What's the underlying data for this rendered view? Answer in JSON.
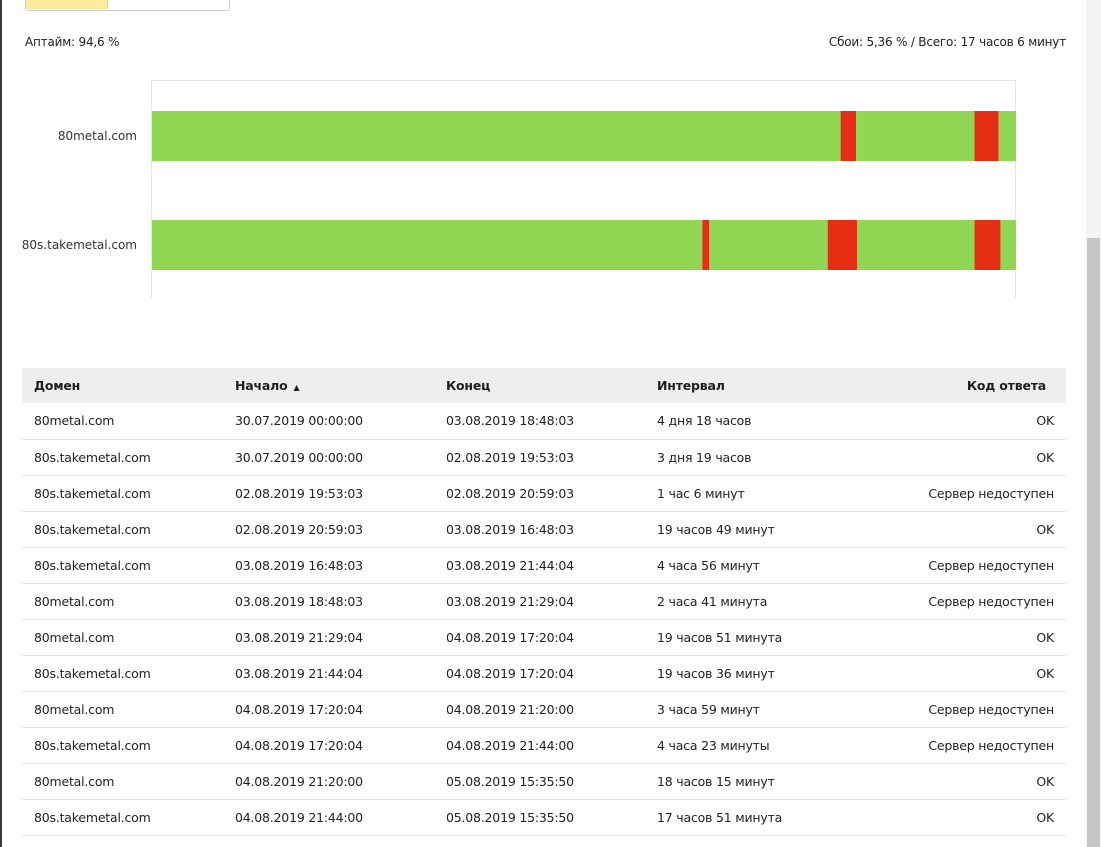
{
  "summary": {
    "uptime": "Аптайм: 94,6 %",
    "failures": "Сбои: 5,36 % / Всего: 17 часов 6 минут"
  },
  "colors": {
    "up": "#91d754",
    "down": "#e62e14",
    "ok_text": "#1a8a1a",
    "down_text": "#e32222"
  },
  "timeline": {
    "tracks": [
      {
        "label": "80metal.com",
        "segments": [
          {
            "status": "up",
            "start": 0.0,
            "end": 0.797
          },
          {
            "status": "down",
            "start": 0.797,
            "end": 0.815
          },
          {
            "status": "up",
            "start": 0.815,
            "end": 0.952
          },
          {
            "status": "down",
            "start": 0.952,
            "end": 0.98
          },
          {
            "status": "up",
            "start": 0.98,
            "end": 1.0
          }
        ]
      },
      {
        "label": "80s.takemetal.com",
        "segments": [
          {
            "status": "up",
            "start": 0.0,
            "end": 0.637
          },
          {
            "status": "down",
            "start": 0.637,
            "end": 0.645
          },
          {
            "status": "up",
            "start": 0.645,
            "end": 0.782
          },
          {
            "status": "down",
            "start": 0.782,
            "end": 0.816
          },
          {
            "status": "up",
            "start": 0.816,
            "end": 0.952
          },
          {
            "status": "down",
            "start": 0.952,
            "end": 0.982
          },
          {
            "status": "up",
            "start": 0.982,
            "end": 1.0
          }
        ]
      }
    ]
  },
  "table": {
    "headers": {
      "domain": "Домен",
      "start": "Начало",
      "sort_arrow": "▲",
      "end": "Конец",
      "interval": "Интервал",
      "code": "Код ответа"
    },
    "rows": [
      {
        "domain": "80metal.com",
        "start": "30.07.2019 00:00:00",
        "end": "03.08.2019 18:48:03",
        "interval": "4 дня 18 часов",
        "code": "OK",
        "status": "ok"
      },
      {
        "domain": "80s.takemetal.com",
        "start": "30.07.2019 00:00:00",
        "end": "02.08.2019 19:53:03",
        "interval": "3 дня 19 часов",
        "code": "OK",
        "status": "ok"
      },
      {
        "domain": "80s.takemetal.com",
        "start": "02.08.2019 19:53:03",
        "end": "02.08.2019 20:59:03",
        "interval": "1 час 6 минут",
        "code": "Сервер недоступен",
        "status": "down"
      },
      {
        "domain": "80s.takemetal.com",
        "start": "02.08.2019 20:59:03",
        "end": "03.08.2019 16:48:03",
        "interval": "19 часов 49 минут",
        "code": "OK",
        "status": "ok"
      },
      {
        "domain": "80s.takemetal.com",
        "start": "03.08.2019 16:48:03",
        "end": "03.08.2019 21:44:04",
        "interval": "4 часа 56 минут",
        "code": "Сервер недоступен",
        "status": "down"
      },
      {
        "domain": "80metal.com",
        "start": "03.08.2019 18:48:03",
        "end": "03.08.2019 21:29:04",
        "interval": "2 часа 41 минута",
        "code": "Сервер недоступен",
        "status": "down"
      },
      {
        "domain": "80metal.com",
        "start": "03.08.2019 21:29:04",
        "end": "04.08.2019 17:20:04",
        "interval": "19 часов 51 минута",
        "code": "OK",
        "status": "ok"
      },
      {
        "domain": "80s.takemetal.com",
        "start": "03.08.2019 21:44:04",
        "end": "04.08.2019 17:20:04",
        "interval": "19 часов 36 минут",
        "code": "OK",
        "status": "ok"
      },
      {
        "domain": "80metal.com",
        "start": "04.08.2019 17:20:04",
        "end": "04.08.2019 21:20:00",
        "interval": "3 часа 59 минут",
        "code": "Сервер недоступен",
        "status": "down"
      },
      {
        "domain": "80s.takemetal.com",
        "start": "04.08.2019 17:20:04",
        "end": "04.08.2019 21:44:00",
        "interval": "4 часа 23 минуты",
        "code": "Сервер недоступен",
        "status": "down"
      },
      {
        "domain": "80metal.com",
        "start": "04.08.2019 21:20:00",
        "end": "05.08.2019 15:35:50",
        "interval": "18 часов 15 минут",
        "code": "OK",
        "status": "ok"
      },
      {
        "domain": "80s.takemetal.com",
        "start": "04.08.2019 21:44:00",
        "end": "05.08.2019 15:35:50",
        "interval": "17 часов 51 минута",
        "code": "OK",
        "status": "ok"
      }
    ]
  }
}
